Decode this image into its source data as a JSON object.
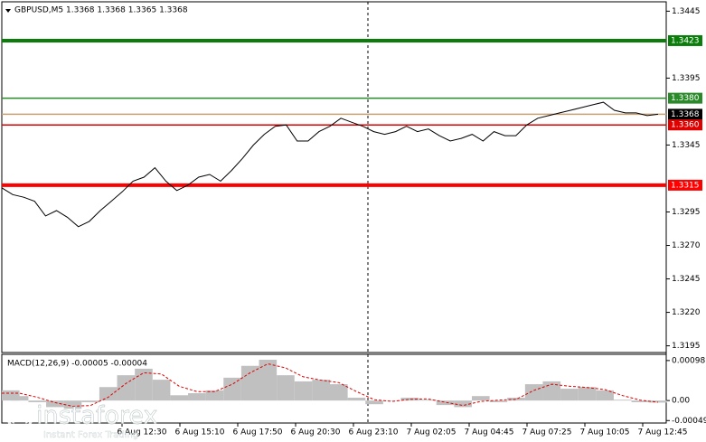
{
  "chart_data": [
    {
      "type": "line",
      "title": "GBPUSD,M5  1.3368 1.3368 1.3365 1.3368",
      "color": "#000000",
      "values": [
        1.3313,
        1.3308,
        1.3306,
        1.3303,
        1.3292,
        1.3296,
        1.3291,
        1.3284,
        1.3288,
        1.3296,
        1.3303,
        1.331,
        1.3318,
        1.3321,
        1.3328,
        1.3318,
        1.3311,
        1.3315,
        1.3321,
        1.3323,
        1.3318,
        1.3326,
        1.3335,
        1.3345,
        1.3353,
        1.3359,
        1.336,
        1.3348,
        1.3348,
        1.3355,
        1.3359,
        1.3365,
        1.3362,
        1.3359,
        1.3355,
        1.3353,
        1.3355,
        1.3359,
        1.3355,
        1.3357,
        1.3352,
        1.3348,
        1.335,
        1.3353,
        1.3348,
        1.3355,
        1.3352,
        1.3352,
        1.336,
        1.3365,
        1.3367,
        1.3369,
        1.3371,
        1.3373,
        1.3375,
        1.3377,
        1.3371,
        1.3369,
        1.3369,
        1.3367,
        1.3368
      ],
      "ylim": [
        1.319,
        1.3452
      ],
      "yticks": [
        1.3445,
        1.3395,
        1.3345,
        1.3295,
        {
          "value": 1.327,
          "label": "1.3270"
        },
        1.3245,
        {
          "value": 1.322,
          "label": "1.3220"
        },
        1.3195
      ],
      "levels": [
        {
          "value": 1.3423,
          "color": "#0b7d0b",
          "thick": true
        },
        {
          "value": 1.338,
          "label": "1.3380",
          "color": "#2a8a2a",
          "thick": false
        },
        {
          "value": 1.3368,
          "color": "#c8a070",
          "label_color": "#000000",
          "thick": false
        },
        {
          "value": 1.336,
          "label": "1.3360",
          "color": "#e00000",
          "thick": false
        },
        {
          "value": 1.3315,
          "color": "#ff0000",
          "thick": true
        }
      ],
      "xlabels": [
        "6 Aug 12:30",
        "6 Aug 15:10",
        "6 Aug 17:50",
        "6 Aug 20:30",
        "6 Aug 23:10",
        "7 Aug 02:05",
        "7 Aug 04:45",
        "7 Aug 07:25",
        "7 Aug 10:05",
        "7 Aug 12:45"
      ],
      "watermark": "instaforex",
      "watermark_subtitle": "Instant Forex Trading"
    },
    {
      "type": "macd",
      "title": "MACD(12,26,9) -0.00005 -0.00004",
      "series": [
        {
          "name": "MACD",
          "color": "#c0c0c0",
          "values": [
            0.00025,
            0.00011,
            -4e-05,
            -0.00016,
            -0.0002,
            -4e-05,
            0.00033,
            0.00062,
            0.00078,
            0.00051,
            0.00013,
            0.00018,
            0.00025,
            0.00056,
            0.00085,
            0.001,
            0.00062,
            0.00047,
            0.00051,
            0.0004,
            7e-05,
            -9e-05,
            0,
            7e-05,
            2e-05,
            -0.00011,
            -0.00016,
            0.00011,
            -4e-05,
            7e-05,
            0.0004,
            0.00047,
            0.00029,
            0.00033,
            0.00025,
            2e-05,
            -4e-05,
            -5e-05
          ]
        },
        {
          "name": "Signal",
          "color": "#e00000",
          "values": [
            0.00018,
            0.00018,
            8e-05,
            -5e-05,
            -0.00014,
            -0.00012,
            8e-05,
            0.00042,
            0.00068,
            0.00065,
            0.00035,
            0.00022,
            0.00022,
            0.0004,
            0.00068,
            0.0009,
            0.0008,
            0.00058,
            0.0005,
            0.00044,
            0.00022,
            2e-05,
            -2e-05,
            3e-05,
            4e-05,
            -4e-05,
            -0.00012,
            -2e-05,
            1e-05,
            3e-05,
            0.00025,
            0.0004,
            0.00035,
            0.00032,
            0.00027,
            0.00012,
            1e-05,
            -4e-05
          ]
        }
      ],
      "ylim": [
        -0.00055,
        0.00111
      ],
      "yticks": [
        0.00098,
        {
          "value": 0,
          "label": "0.00"
        },
        -0.00049
      ]
    }
  ]
}
